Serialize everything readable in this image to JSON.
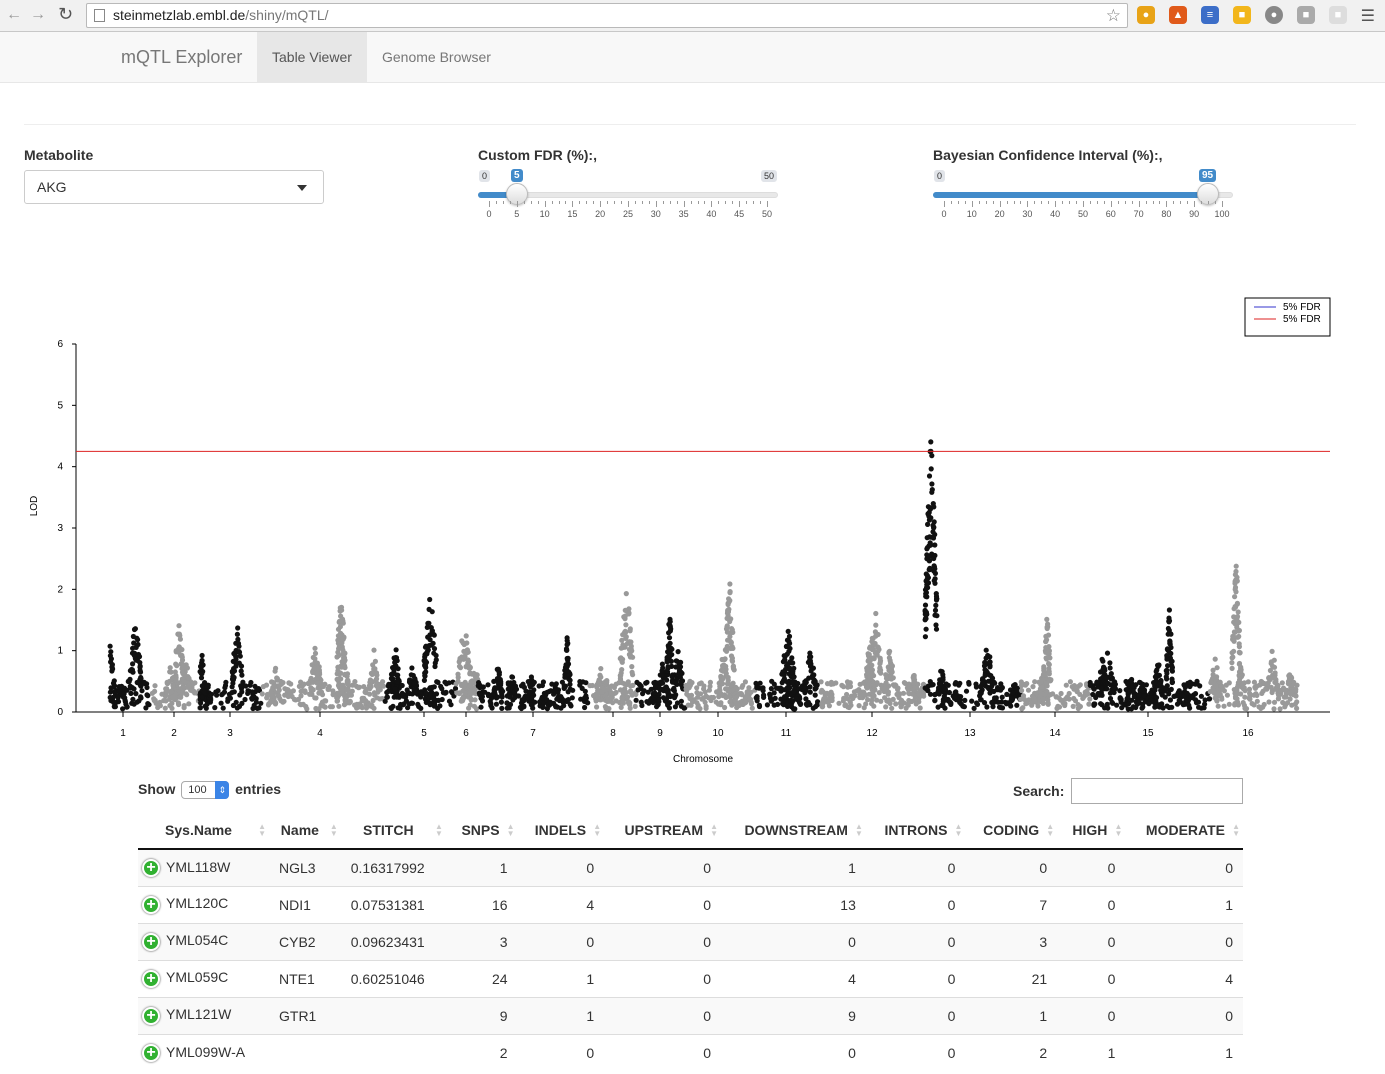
{
  "browser": {
    "url_host": "steinmetzlab.embl.de",
    "url_path": "/shiny/mQTL/"
  },
  "navbar": {
    "brand": "mQTL Explorer",
    "tabs": [
      "Table Viewer",
      "Genome Browser"
    ],
    "active_tab": "Table Viewer"
  },
  "controls": {
    "metabolite_label": "Metabolite",
    "metabolite_value": "AKG",
    "fdr": {
      "label": "Custom FDR (%):,",
      "min": 0,
      "max": 50,
      "value": 5,
      "ticks": [
        "0",
        "5",
        "10",
        "15",
        "20",
        "25",
        "30",
        "35",
        "40",
        "45",
        "50"
      ]
    },
    "bci": {
      "label": "Bayesian Confidence Interval (%):,",
      "min": 0,
      "max": 100,
      "value": 95,
      "ticks": [
        "0",
        "10",
        "20",
        "30",
        "40",
        "50",
        "60",
        "70",
        "80",
        "90",
        "100"
      ]
    }
  },
  "chart_data": {
    "type": "scatter",
    "title": "",
    "xlabel": "Chromosome",
    "ylabel": "LOD",
    "ylim": [
      0,
      6
    ],
    "yticks": [
      "0",
      "1",
      "2",
      "3",
      "4",
      "5",
      "6"
    ],
    "chromosomes": [
      "1",
      "2",
      "3",
      "4",
      "5",
      "6",
      "7",
      "8",
      "9",
      "10",
      "11",
      "12",
      "13",
      "14",
      "15",
      "16"
    ],
    "threshold": 4.25,
    "legend": {
      "position": "top-right",
      "entries": [
        {
          "label": "5% FDR",
          "color": "#3333cc"
        },
        {
          "label": "5% FDR",
          "color": "#dd2222"
        }
      ]
    },
    "colors": {
      "odd": "#111111",
      "even": "#999999"
    },
    "peak_lod_per_chromosome": [
      1.6,
      1.5,
      1.55,
      2.2,
      2.0,
      1.5,
      1.3,
      2.2,
      1.7,
      2.2,
      1.4,
      1.7,
      4.75,
      1.6,
      1.9,
      2.6
    ]
  },
  "table": {
    "show_label": "Show",
    "entries_value": "100",
    "entries_label": "entries",
    "search_label": "Search:",
    "columns": [
      "Sys.Name",
      "Name",
      "STITCH",
      "SNPS",
      "INDELS",
      "UPSTREAM",
      "DOWNSTREAM",
      "INTRONS",
      "CODING",
      "HIGH",
      "MODERATE"
    ],
    "rows": [
      [
        "YML118W",
        "NGL3",
        "0.16317992",
        "1",
        "0",
        "0",
        "1",
        "0",
        "0",
        "0",
        "0"
      ],
      [
        "YML120C",
        "NDI1",
        "0.07531381",
        "16",
        "4",
        "0",
        "13",
        "0",
        "7",
        "0",
        "1"
      ],
      [
        "YML054C",
        "CYB2",
        "0.09623431",
        "3",
        "0",
        "0",
        "0",
        "0",
        "3",
        "0",
        "0"
      ],
      [
        "YML059C",
        "NTE1",
        "0.60251046",
        "24",
        "1",
        "0",
        "4",
        "0",
        "21",
        "0",
        "4"
      ],
      [
        "YML121W",
        "GTR1",
        "",
        "9",
        "1",
        "0",
        "9",
        "0",
        "1",
        "0",
        "0"
      ],
      [
        "YML099W-A",
        "",
        "",
        "2",
        "0",
        "0",
        "0",
        "0",
        "2",
        "1",
        "1"
      ]
    ]
  }
}
